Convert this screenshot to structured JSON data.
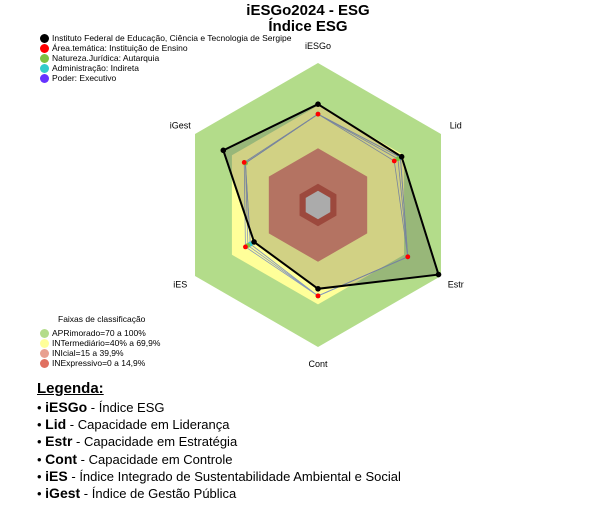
{
  "title_line1": "iESGo2024 - ESG",
  "title_line2": "Índice ESG",
  "chart_data": {
    "type": "radar",
    "axes": [
      "iESGo",
      "Lid",
      "Estr",
      "Cont",
      "iES",
      "iGest"
    ],
    "range": [
      0,
      100
    ],
    "series": [
      {
        "name": "Instituto Federal de Educação, Ciência e Tecnologia de Sergipe",
        "color": "#000000",
        "values": [
          71,
          68,
          98,
          59,
          52,
          77
        ]
      },
      {
        "name": "Área.temática: Instituição de Ensino",
        "color": "#ff0000",
        "values": [
          64,
          62,
          73,
          64,
          59,
          60
        ]
      },
      {
        "name": "Natureza.Jurídica: Autarquia",
        "color": "#7cc242",
        "values": [
          64,
          65,
          73,
          64,
          57,
          59
        ]
      },
      {
        "name": "Administração: Indireta",
        "color": "#33cccc",
        "values": [
          64,
          67,
          73,
          64,
          55,
          59
        ]
      },
      {
        "name": "Poder: Executivo",
        "color": "#6633ff",
        "values": [
          64,
          67,
          73,
          64,
          55,
          59
        ]
      }
    ],
    "bands": [
      {
        "label": "APRimorado=70 a 100%",
        "from": 70,
        "to": 100,
        "color": "#b3dc8a"
      },
      {
        "label": "INTermediário=40% a 69,9%",
        "from": 40,
        "to": 70,
        "color": "#ffff99"
      },
      {
        "label": "INIcial=15 a 39,9%",
        "from": 15,
        "to": 40,
        "color": "#d9826b"
      },
      {
        "label": "INExpressivo=0 a 14,9%",
        "from": 0,
        "to": 15,
        "color": "#b94a3a"
      }
    ],
    "inner_empty_color": "#cccccc"
  },
  "faixas_title": "Faixas de classificação",
  "legenda": {
    "title": "Legenda:",
    "items": [
      {
        "abbr": "iESGo",
        "desc": "Índice ESG"
      },
      {
        "abbr": "Lid",
        "desc": "Capacidade em Liderança"
      },
      {
        "abbr": "Estr",
        "desc": "Capacidade em Estratégia"
      },
      {
        "abbr": "Cont",
        "desc": "Capacidade em Controle"
      },
      {
        "abbr": "iES",
        "desc": "Índice Integrado de Sustentabilidade Ambiental e Social"
      },
      {
        "abbr": "iGest",
        "desc": "Índice de Gestão Pública"
      }
    ]
  }
}
